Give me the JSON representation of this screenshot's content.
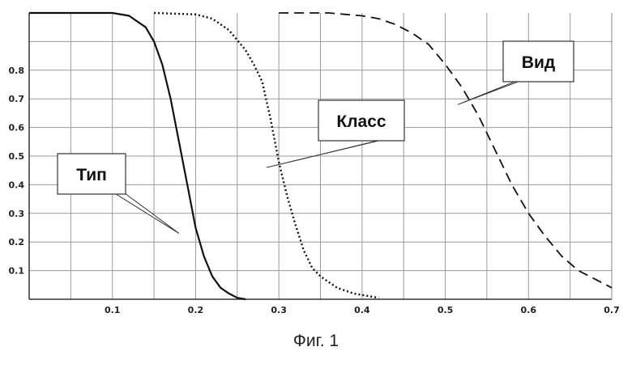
{
  "chart_data": {
    "type": "line",
    "title": "",
    "xlabel": "",
    "ylabel": "",
    "xlim": [
      0,
      0.7
    ],
    "ylim": [
      0,
      1
    ],
    "x_ticks": [
      "0.1",
      "0.2",
      "0.3",
      "0.4",
      "0.5",
      "0.6",
      "0.7"
    ],
    "y_ticks": [
      "0.1",
      "0.2",
      "0.3",
      "0.4",
      "0.5",
      "0.6",
      "0.7",
      "0.8"
    ],
    "grid": true,
    "series": [
      {
        "name": "Тип",
        "style": "solid",
        "x": [
          0.0,
          0.1,
          0.12,
          0.14,
          0.15,
          0.16,
          0.17,
          0.18,
          0.19,
          0.2,
          0.21,
          0.22,
          0.23,
          0.24,
          0.25,
          0.26
        ],
        "y": [
          1.0,
          1.0,
          0.99,
          0.95,
          0.9,
          0.82,
          0.7,
          0.55,
          0.4,
          0.25,
          0.15,
          0.08,
          0.04,
          0.02,
          0.005,
          0.0
        ]
      },
      {
        "name": "Класс",
        "style": "dotted",
        "x": [
          0.15,
          0.2,
          0.22,
          0.24,
          0.26,
          0.27,
          0.28,
          0.29,
          0.3,
          0.31,
          0.32,
          0.33,
          0.34,
          0.35,
          0.37,
          0.39,
          0.41,
          0.42
        ],
        "y": [
          1.0,
          0.995,
          0.98,
          0.94,
          0.87,
          0.82,
          0.76,
          0.63,
          0.48,
          0.36,
          0.26,
          0.17,
          0.11,
          0.08,
          0.04,
          0.02,
          0.01,
          0.005
        ]
      },
      {
        "name": "Вид",
        "style": "dashed",
        "x": [
          0.3,
          0.36,
          0.38,
          0.4,
          0.42,
          0.44,
          0.46,
          0.48,
          0.5,
          0.52,
          0.54,
          0.56,
          0.58,
          0.6,
          0.62,
          0.64,
          0.66,
          0.68,
          0.7
        ],
        "y": [
          1.0,
          1.0,
          0.995,
          0.99,
          0.98,
          0.96,
          0.93,
          0.89,
          0.82,
          0.74,
          0.64,
          0.52,
          0.4,
          0.3,
          0.22,
          0.15,
          0.1,
          0.07,
          0.04
        ]
      }
    ],
    "annotations": [
      {
        "text": "Тип",
        "series": "Тип",
        "point": [
          0.18,
          0.23
        ]
      },
      {
        "text": "Класс",
        "series": "Класс",
        "point": [
          0.285,
          0.46
        ]
      },
      {
        "text": "Вид",
        "series": "Вид",
        "point": [
          0.515,
          0.68
        ]
      }
    ]
  },
  "caption": "Фиг. 1"
}
